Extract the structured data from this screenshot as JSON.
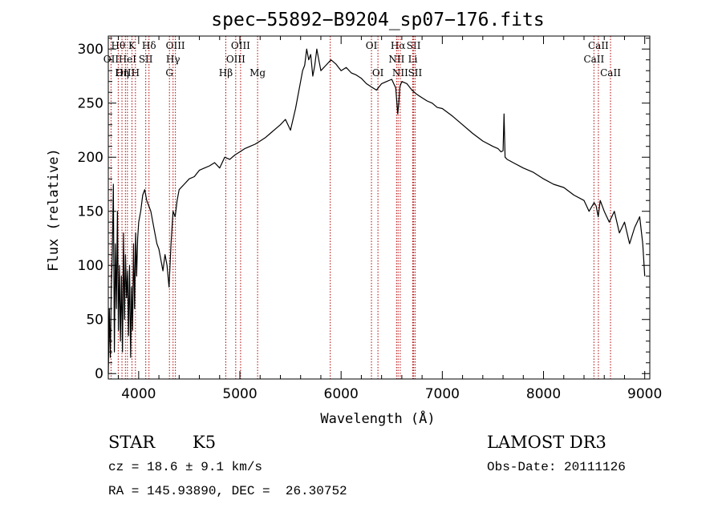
{
  "chart_data": {
    "type": "line",
    "title": "spec−55892−B9204_sp07−176.fits",
    "xlabel": "Wavelength (Å)",
    "ylabel": "Flux (relative)",
    "xlim": [
      3700,
      9050
    ],
    "ylim": [
      -5,
      312
    ],
    "x_ticks": [
      4000,
      5000,
      6000,
      7000,
      8000,
      9000
    ],
    "y_ticks": [
      0,
      50,
      100,
      150,
      200,
      250,
      300
    ],
    "series": [
      {
        "name": "flux",
        "x": [
          3700,
          3710,
          3720,
          3730,
          3740,
          3750,
          3760,
          3770,
          3780,
          3790,
          3800,
          3810,
          3820,
          3830,
          3840,
          3850,
          3860,
          3870,
          3880,
          3890,
          3900,
          3910,
          3920,
          3930,
          3940,
          3950,
          3960,
          3970,
          3980,
          3990,
          4000,
          4020,
          4040,
          4060,
          4080,
          4100,
          4120,
          4140,
          4160,
          4180,
          4200,
          4220,
          4240,
          4260,
          4280,
          4300,
          4320,
          4340,
          4360,
          4380,
          4400,
          4450,
          4500,
          4550,
          4600,
          4650,
          4700,
          4750,
          4800,
          4850,
          4900,
          4950,
          5000,
          5050,
          5100,
          5150,
          5200,
          5250,
          5300,
          5350,
          5400,
          5450,
          5500,
          5550,
          5600,
          5620,
          5640,
          5660,
          5680,
          5700,
          5720,
          5740,
          5760,
          5780,
          5800,
          5850,
          5900,
          5950,
          6000,
          6050,
          6100,
          6150,
          6200,
          6250,
          6300,
          6350,
          6400,
          6450,
          6500,
          6540,
          6560,
          6570,
          6580,
          6600,
          6650,
          6700,
          6750,
          6800,
          6850,
          6900,
          6950,
          7000,
          7100,
          7200,
          7300,
          7400,
          7500,
          7550,
          7580,
          7600,
          7610,
          7620,
          7640,
          7700,
          7800,
          7900,
          8000,
          8100,
          8200,
          8300,
          8400,
          8450,
          8500,
          8520,
          8540,
          8560,
          8600,
          8650,
          8700,
          8750,
          8800,
          8850,
          8900,
          8950,
          8980,
          9000
        ],
        "values": [
          0,
          60,
          15,
          80,
          110,
          175,
          20,
          120,
          60,
          150,
          40,
          100,
          30,
          90,
          20,
          130,
          50,
          110,
          70,
          95,
          35,
          100,
          15,
          80,
          40,
          120,
          60,
          130,
          90,
          125,
          140,
          150,
          165,
          170,
          160,
          155,
          150,
          140,
          130,
          120,
          115,
          105,
          95,
          110,
          100,
          80,
          120,
          150,
          145,
          160,
          170,
          175,
          180,
          182,
          188,
          190,
          192,
          195,
          190,
          200,
          198,
          202,
          205,
          208,
          210,
          212,
          215,
          218,
          222,
          226,
          230,
          235,
          225,
          245,
          270,
          280,
          285,
          300,
          290,
          295,
          275,
          285,
          300,
          290,
          280,
          285,
          290,
          286,
          280,
          283,
          278,
          276,
          273,
          268,
          265,
          262,
          268,
          270,
          272,
          264,
          240,
          250,
          265,
          270,
          268,
          262,
          258,
          255,
          252,
          250,
          246,
          245,
          238,
          230,
          222,
          215,
          210,
          208,
          205,
          206,
          240,
          200,
          198,
          195,
          190,
          186,
          180,
          175,
          172,
          165,
          160,
          150,
          158,
          155,
          145,
          160,
          150,
          140,
          150,
          130,
          140,
          120,
          135,
          145,
          120,
          90
        ]
      }
    ],
    "line_markers": [
      {
        "label": "Hθ",
        "x": 3798,
        "row": 0
      },
      {
        "label": "OII",
        "x": 3727,
        "row": 1
      },
      {
        "label": "OIII",
        "x": 3869,
        "row": 2
      },
      {
        "label": "HeI",
        "x": 3889,
        "row": 1
      },
      {
        "label": "Hη",
        "x": 3835,
        "row": 2
      },
      {
        "label": "K",
        "x": 3934,
        "row": 0
      },
      {
        "label": "SII",
        "x": 4070,
        "row": 1
      },
      {
        "label": "H",
        "x": 3968,
        "row": 2
      },
      {
        "label": "Hδ",
        "x": 4102,
        "row": 0
      },
      {
        "label": "OIII",
        "x": 4363,
        "row": 0
      },
      {
        "label": "Hγ",
        "x": 4340,
        "row": 1
      },
      {
        "label": "G",
        "x": 4304,
        "row": 2
      },
      {
        "label": "OIII",
        "x": 5007,
        "row": 0
      },
      {
        "label": "OIII",
        "x": 4959,
        "row": 1
      },
      {
        "label": "Hβ",
        "x": 4861,
        "row": 2
      },
      {
        "label": "Mg",
        "x": 5175,
        "row": 2
      },
      {
        "label": "OI",
        "x": 6300,
        "row": 0
      },
      {
        "label": "OI",
        "x": 6364,
        "row": 2
      },
      {
        "label": "Hα",
        "x": 6563,
        "row": 0
      },
      {
        "label": "NII",
        "x": 6548,
        "row": 1
      },
      {
        "label": "NII",
        "x": 6584,
        "row": 2
      },
      {
        "label": "SII",
        "x": 6717,
        "row": 0
      },
      {
        "label": "Li",
        "x": 6708,
        "row": 1
      },
      {
        "label": "SII",
        "x": 6731,
        "row": 2
      },
      {
        "label": "CaII",
        "x": 8542,
        "row": 0
      },
      {
        "label": "CaII",
        "x": 8498,
        "row": 1
      },
      {
        "label": "CaII",
        "x": 8662,
        "row": 2
      },
      {
        "label": "",
        "x": 5893,
        "row": -1
      }
    ]
  },
  "info": {
    "class": "STAR",
    "subclass": "K5",
    "survey": "LAMOST DR3",
    "cz": "cz = 18.6 ± 9.1 km/s",
    "obs_date": "Obs-Date: 20111126",
    "radec": "RA = 145.93890, DEC =  26.30752"
  }
}
